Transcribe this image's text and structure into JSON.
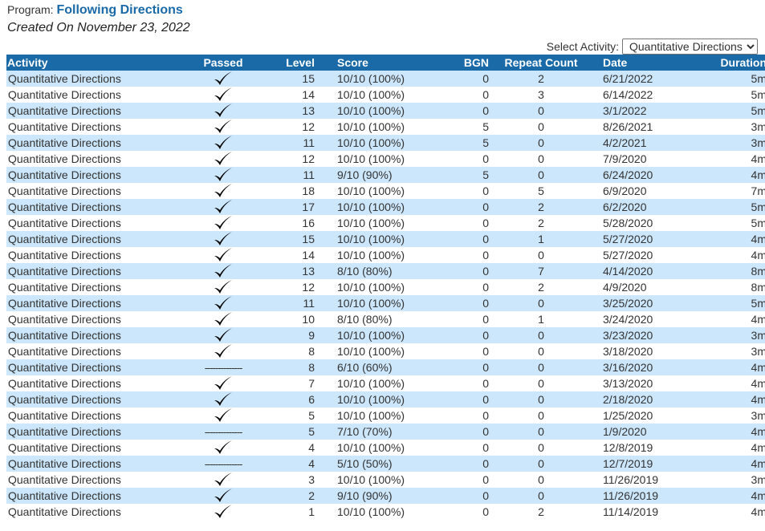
{
  "header": {
    "program_label": "Program:",
    "program_name": "Following Directions",
    "created": "Created On November 23, 2022"
  },
  "activity_select": {
    "label": "Select Activity:",
    "selected": "Quantitative Directions"
  },
  "table": {
    "columns": [
      "Activity",
      "Passed",
      "Level",
      "Score",
      "BGN",
      "Repeat Count",
      "Date",
      "Duration"
    ],
    "rows": [
      {
        "activity": "Quantitative Directions",
        "passed": true,
        "level": "15",
        "score": "10/10 (100%)",
        "bgn": "0",
        "repeat": "2",
        "date": "6/21/2022",
        "duration": "5m"
      },
      {
        "activity": "Quantitative Directions",
        "passed": true,
        "level": "14",
        "score": "10/10 (100%)",
        "bgn": "0",
        "repeat": "3",
        "date": "6/14/2022",
        "duration": "5m"
      },
      {
        "activity": "Quantitative Directions",
        "passed": true,
        "level": "13",
        "score": "10/10 (100%)",
        "bgn": "0",
        "repeat": "0",
        "date": "3/1/2022",
        "duration": "5m"
      },
      {
        "activity": "Quantitative Directions",
        "passed": true,
        "level": "12",
        "score": "10/10 (100%)",
        "bgn": "5",
        "repeat": "0",
        "date": "8/26/2021",
        "duration": "3m"
      },
      {
        "activity": "Quantitative Directions",
        "passed": true,
        "level": "11",
        "score": "10/10 (100%)",
        "bgn": "5",
        "repeat": "0",
        "date": "4/2/2021",
        "duration": "3m"
      },
      {
        "activity": "Quantitative Directions",
        "passed": true,
        "level": "12",
        "score": "10/10 (100%)",
        "bgn": "0",
        "repeat": "0",
        "date": "7/9/2020",
        "duration": "4m"
      },
      {
        "activity": "Quantitative Directions",
        "passed": true,
        "level": "11",
        "score": "9/10 (90%)",
        "bgn": "5",
        "repeat": "0",
        "date": "6/24/2020",
        "duration": "4m"
      },
      {
        "activity": "Quantitative Directions",
        "passed": true,
        "level": "18",
        "score": "10/10 (100%)",
        "bgn": "0",
        "repeat": "5",
        "date": "6/9/2020",
        "duration": "7m"
      },
      {
        "activity": "Quantitative Directions",
        "passed": true,
        "level": "17",
        "score": "10/10 (100%)",
        "bgn": "0",
        "repeat": "2",
        "date": "6/2/2020",
        "duration": "5m"
      },
      {
        "activity": "Quantitative Directions",
        "passed": true,
        "level": "16",
        "score": "10/10 (100%)",
        "bgn": "0",
        "repeat": "2",
        "date": "5/28/2020",
        "duration": "5m"
      },
      {
        "activity": "Quantitative Directions",
        "passed": true,
        "level": "15",
        "score": "10/10 (100%)",
        "bgn": "0",
        "repeat": "1",
        "date": "5/27/2020",
        "duration": "4m"
      },
      {
        "activity": "Quantitative Directions",
        "passed": true,
        "level": "14",
        "score": "10/10 (100%)",
        "bgn": "0",
        "repeat": "0",
        "date": "5/27/2020",
        "duration": "4m"
      },
      {
        "activity": "Quantitative Directions",
        "passed": true,
        "level": "13",
        "score": "8/10 (80%)",
        "bgn": "0",
        "repeat": "7",
        "date": "4/14/2020",
        "duration": "8m"
      },
      {
        "activity": "Quantitative Directions",
        "passed": true,
        "level": "12",
        "score": "10/10 (100%)",
        "bgn": "0",
        "repeat": "2",
        "date": "4/9/2020",
        "duration": "8m"
      },
      {
        "activity": "Quantitative Directions",
        "passed": true,
        "level": "11",
        "score": "10/10 (100%)",
        "bgn": "0",
        "repeat": "0",
        "date": "3/25/2020",
        "duration": "5m"
      },
      {
        "activity": "Quantitative Directions",
        "passed": true,
        "level": "10",
        "score": "8/10 (80%)",
        "bgn": "0",
        "repeat": "1",
        "date": "3/24/2020",
        "duration": "4m"
      },
      {
        "activity": "Quantitative Directions",
        "passed": true,
        "level": "9",
        "score": "10/10 (100%)",
        "bgn": "0",
        "repeat": "0",
        "date": "3/23/2020",
        "duration": "3m"
      },
      {
        "activity": "Quantitative Directions",
        "passed": true,
        "level": "8",
        "score": "10/10 (100%)",
        "bgn": "0",
        "repeat": "0",
        "date": "3/18/2020",
        "duration": "3m"
      },
      {
        "activity": "Quantitative Directions",
        "passed": false,
        "level": "8",
        "score": "6/10 (60%)",
        "bgn": "0",
        "repeat": "0",
        "date": "3/16/2020",
        "duration": "4m"
      },
      {
        "activity": "Quantitative Directions",
        "passed": true,
        "level": "7",
        "score": "10/10 (100%)",
        "bgn": "0",
        "repeat": "0",
        "date": "3/13/2020",
        "duration": "4m"
      },
      {
        "activity": "Quantitative Directions",
        "passed": true,
        "level": "6",
        "score": "10/10 (100%)",
        "bgn": "0",
        "repeat": "0",
        "date": "2/18/2020",
        "duration": "4m"
      },
      {
        "activity": "Quantitative Directions",
        "passed": true,
        "level": "5",
        "score": "10/10 (100%)",
        "bgn": "0",
        "repeat": "0",
        "date": "1/25/2020",
        "duration": "3m"
      },
      {
        "activity": "Quantitative Directions",
        "passed": false,
        "level": "5",
        "score": "7/10 (70%)",
        "bgn": "0",
        "repeat": "0",
        "date": "1/9/2020",
        "duration": "4m"
      },
      {
        "activity": "Quantitative Directions",
        "passed": true,
        "level": "4",
        "score": "10/10 (100%)",
        "bgn": "0",
        "repeat": "0",
        "date": "12/8/2019",
        "duration": "4m"
      },
      {
        "activity": "Quantitative Directions",
        "passed": false,
        "level": "4",
        "score": "5/10 (50%)",
        "bgn": "0",
        "repeat": "0",
        "date": "12/7/2019",
        "duration": "4m"
      },
      {
        "activity": "Quantitative Directions",
        "passed": true,
        "level": "3",
        "score": "10/10 (100%)",
        "bgn": "0",
        "repeat": "0",
        "date": "11/26/2019",
        "duration": "3m"
      },
      {
        "activity": "Quantitative Directions",
        "passed": true,
        "level": "2",
        "score": "9/10 (90%)",
        "bgn": "0",
        "repeat": "0",
        "date": "11/26/2019",
        "duration": "4m"
      },
      {
        "activity": "Quantitative Directions",
        "passed": true,
        "level": "1",
        "score": "10/10 (100%)",
        "bgn": "0",
        "repeat": "2",
        "date": "11/14/2019",
        "duration": "4m"
      }
    ],
    "not_passed_marker": "--------------"
  },
  "icons": {
    "passed": "checkmark-icon"
  },
  "colors": {
    "header_bg": "#1a6aa8",
    "row_stripe": "#cce6fb",
    "program_name": "#1a6aa8"
  }
}
